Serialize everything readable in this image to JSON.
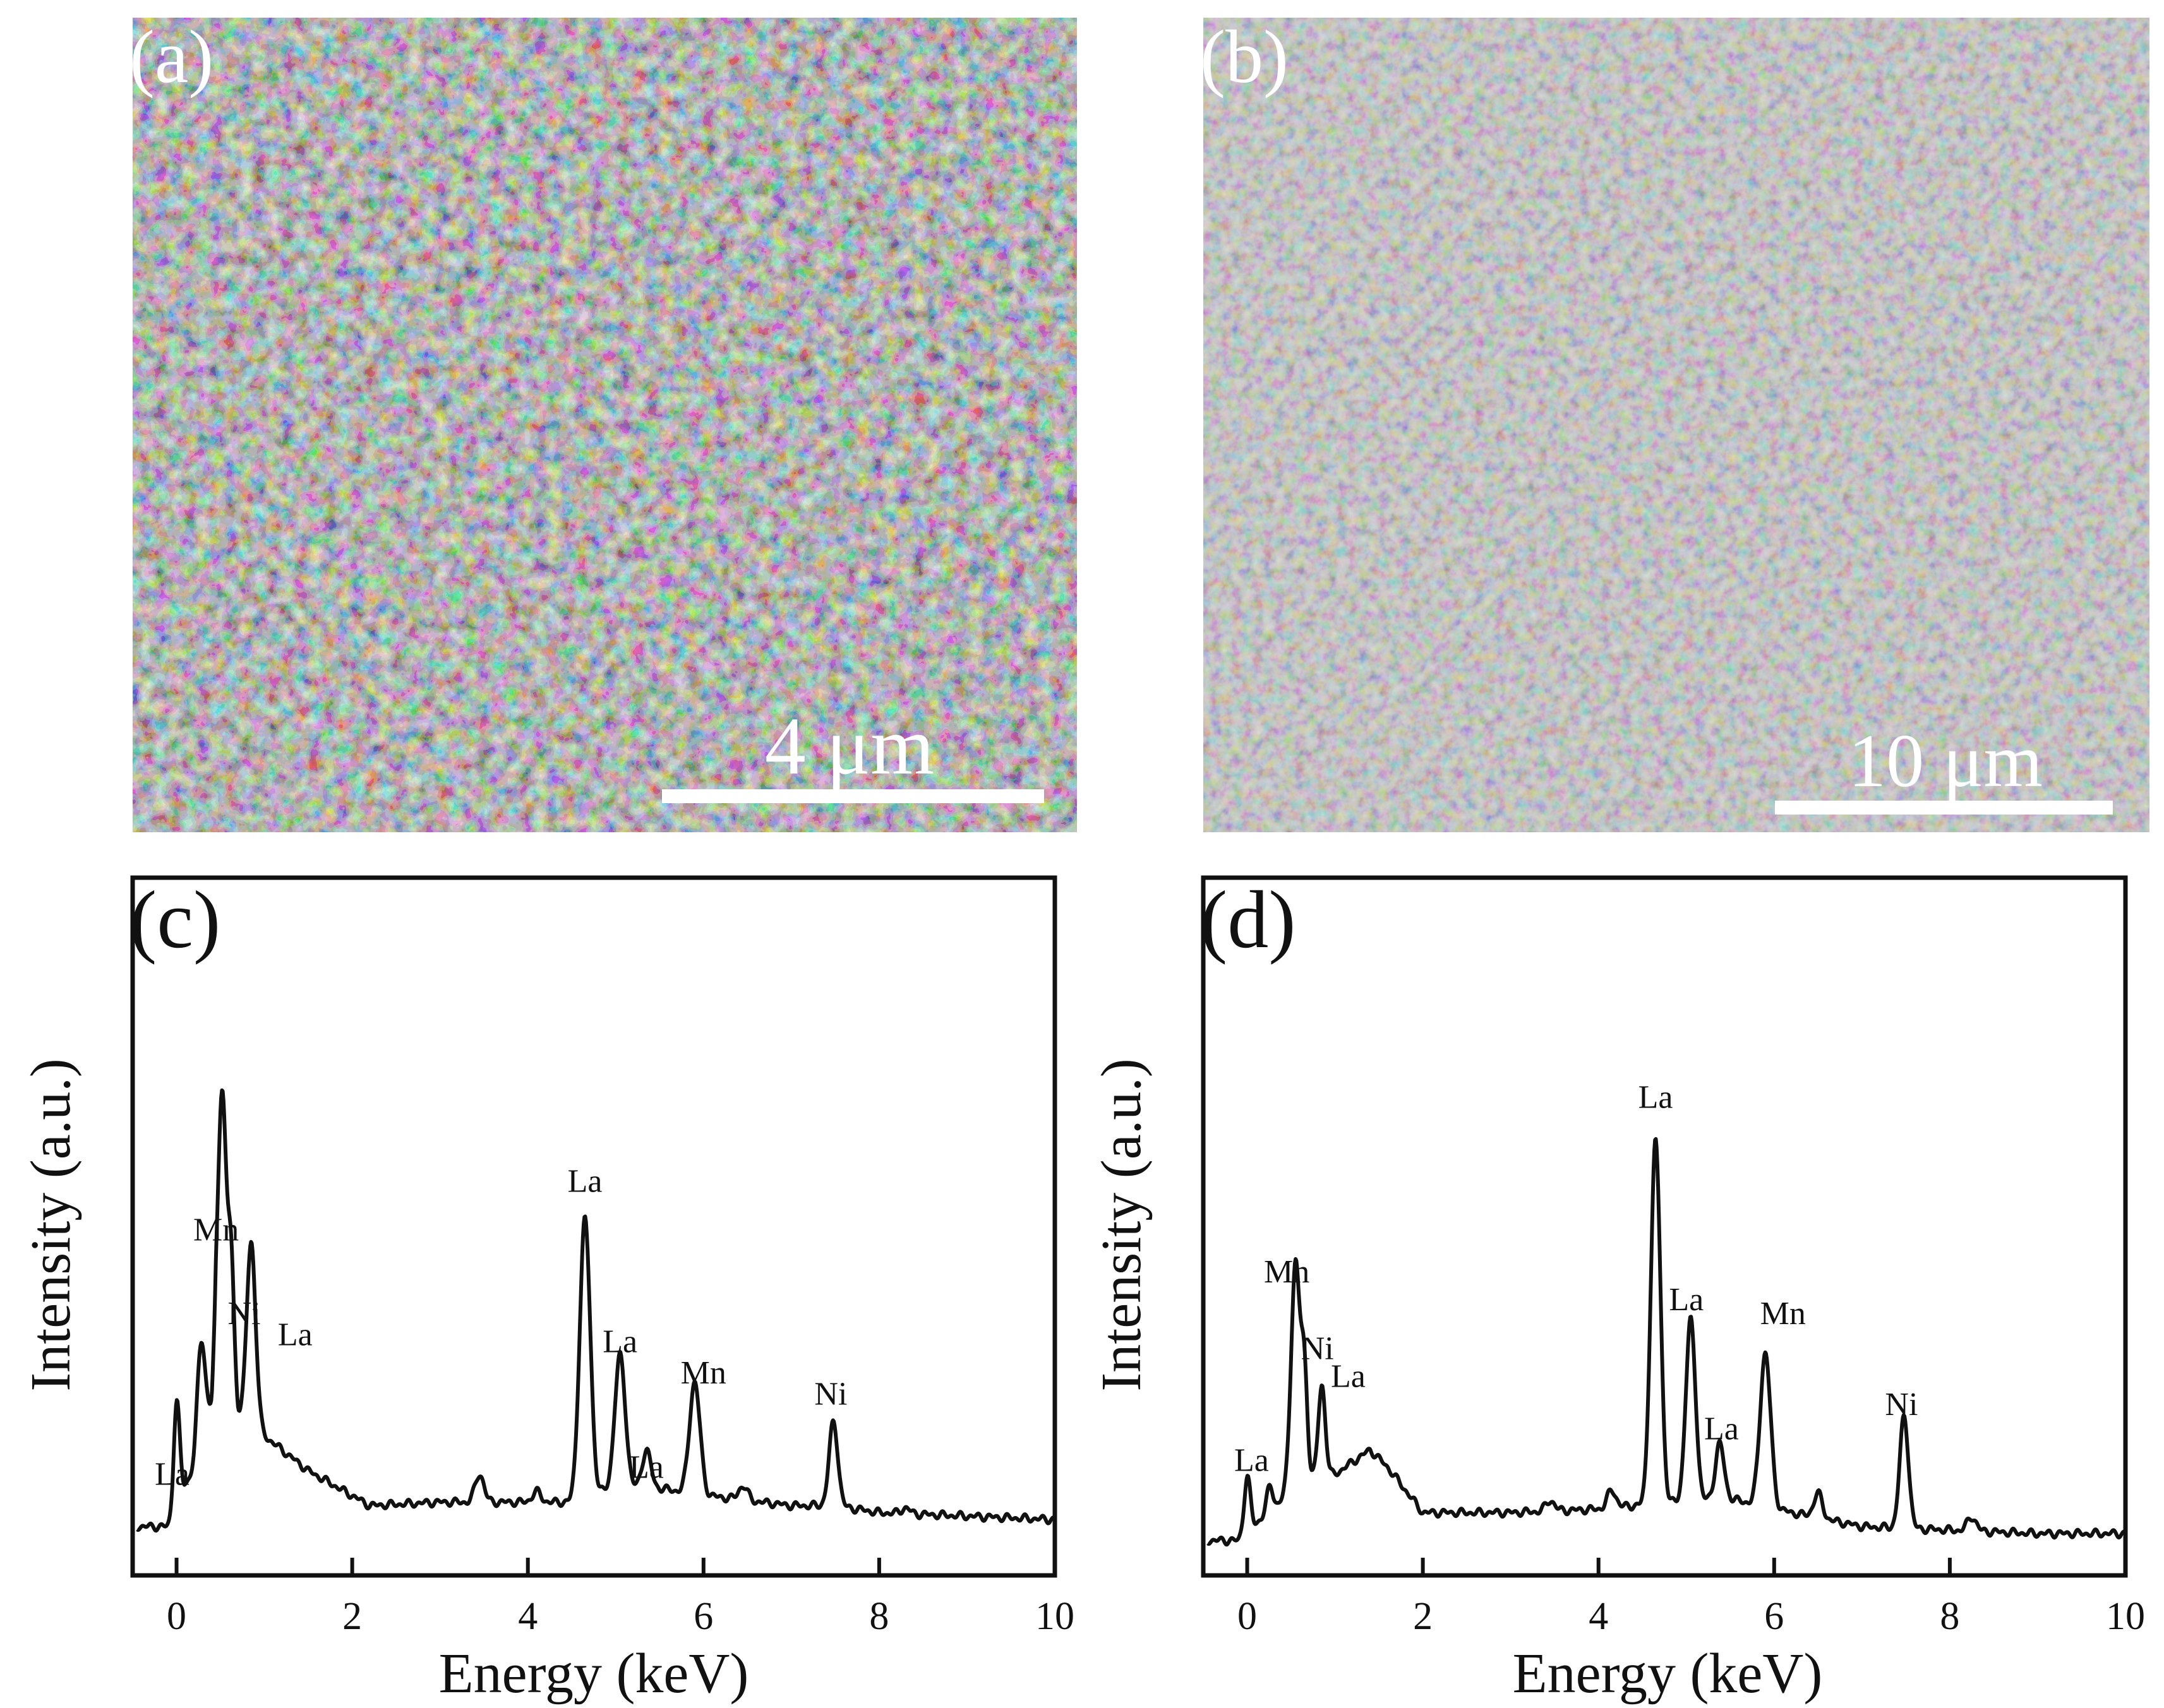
{
  "figure": {
    "panels": [
      {
        "label": "(a)",
        "type": "sem-micrograph",
        "scale_bar": "4 μm"
      },
      {
        "label": "(b)",
        "type": "sem-micrograph",
        "scale_bar": "10 μm"
      }
    ]
  },
  "colors": {
    "line": "#111111",
    "sem_dark": "#1c1c1c",
    "sem_mid": "#6e6e6e",
    "sem_light": "#cfcfcf",
    "scale_bar": "#ffffff"
  },
  "chart_data": [
    {
      "panel_label": "(c)",
      "type": "line",
      "xlabel": "Energy (keV)",
      "ylabel": "Intensity (a.u.)",
      "xlim": [
        -0.5,
        10
      ],
      "ylim": [
        0,
        10
      ],
      "xticks": [
        "0",
        "2",
        "4",
        "6",
        "8",
        "10"
      ],
      "baseline_points": [
        [
          -0.45,
          0.7
        ],
        [
          -0.05,
          0.7
        ],
        [
          0.1,
          1.3
        ],
        [
          0.2,
          1.5
        ],
        [
          0.4,
          2.4
        ],
        [
          0.45,
          3.5
        ],
        [
          0.7,
          2.3
        ],
        [
          0.95,
          2.1
        ],
        [
          1.0,
          2.0
        ],
        [
          1.5,
          1.5
        ],
        [
          2.2,
          1.0
        ],
        [
          3.0,
          1.05
        ],
        [
          4.5,
          1.05
        ],
        [
          5.0,
          1.25
        ],
        [
          5.5,
          1.25
        ],
        [
          6.0,
          1.15
        ],
        [
          7.0,
          1.0
        ],
        [
          7.5,
          1.0
        ],
        [
          8.0,
          0.9
        ],
        [
          9.0,
          0.85
        ],
        [
          10.0,
          0.8
        ]
      ],
      "peaks": [
        {
          "e": 0.0,
          "h": 1.6,
          "w": 0.035
        },
        {
          "e": 0.28,
          "h": 1.5,
          "w": 0.045
        },
        {
          "e": 0.52,
          "h": 3.8,
          "w": 0.045
        },
        {
          "e": 0.62,
          "h": 1.9,
          "w": 0.035
        },
        {
          "e": 0.85,
          "h": 2.6,
          "w": 0.05
        },
        {
          "e": 3.45,
          "h": 0.4,
          "w": 0.05
        },
        {
          "e": 4.1,
          "h": 0.15,
          "w": 0.05
        },
        {
          "e": 4.65,
          "h": 4.0,
          "w": 0.06
        },
        {
          "e": 5.05,
          "h": 1.9,
          "w": 0.06
        },
        {
          "e": 5.35,
          "h": 0.55,
          "w": 0.05
        },
        {
          "e": 5.9,
          "h": 1.6,
          "w": 0.06
        },
        {
          "e": 6.45,
          "h": 0.2,
          "w": 0.05
        },
        {
          "e": 7.48,
          "h": 1.2,
          "w": 0.05
        },
        {
          "e": 8.3,
          "h": 0.08,
          "w": 0.05
        }
      ],
      "peak_labels": [
        {
          "text": "La",
          "x": -0.05,
          "y": 1.3
        },
        {
          "text": "Mn",
          "x": 0.45,
          "y": 4.8
        },
        {
          "text": "Ni",
          "x": 0.77,
          "y": 3.6
        },
        {
          "text": "La",
          "x": 1.35,
          "y": 3.3
        },
        {
          "text": "La",
          "x": 4.65,
          "y": 5.5
        },
        {
          "text": "La",
          "x": 5.05,
          "y": 3.2
        },
        {
          "text": "La",
          "x": 5.35,
          "y": 1.4
        },
        {
          "text": "Mn",
          "x": 6.0,
          "y": 2.75
        },
        {
          "text": "Ni",
          "x": 7.45,
          "y": 2.45
        }
      ]
    },
    {
      "panel_label": "(d)",
      "type": "line",
      "xlabel": "Energy (keV)",
      "ylabel": "Intensity (a.u.)",
      "xlim": [
        -0.5,
        10
      ],
      "ylim": [
        0,
        10
      ],
      "xticks": [
        "0",
        "2",
        "4",
        "6",
        "8",
        "10"
      ],
      "baseline_points": [
        [
          -0.45,
          0.5
        ],
        [
          -0.1,
          0.5
        ],
        [
          0.15,
          0.8
        ],
        [
          0.3,
          0.9
        ],
        [
          0.45,
          1.2
        ],
        [
          0.7,
          1.4
        ],
        [
          1.0,
          1.45
        ],
        [
          1.4,
          1.8
        ],
        [
          1.6,
          1.55
        ],
        [
          2.0,
          0.9
        ],
        [
          3.0,
          0.9
        ],
        [
          4.0,
          0.95
        ],
        [
          4.4,
          1.0
        ],
        [
          5.5,
          1.1
        ],
        [
          6.2,
          0.9
        ],
        [
          7.0,
          0.7
        ],
        [
          8.0,
          0.65
        ],
        [
          9.0,
          0.6
        ],
        [
          10.0,
          0.6
        ]
      ],
      "peaks": [
        {
          "e": 0.0,
          "h": 0.8,
          "w": 0.035
        },
        {
          "e": 0.26,
          "h": 0.4,
          "w": 0.04
        },
        {
          "e": 0.55,
          "h": 3.2,
          "w": 0.05
        },
        {
          "e": 0.65,
          "h": 1.5,
          "w": 0.035
        },
        {
          "e": 0.85,
          "h": 1.3,
          "w": 0.04
        },
        {
          "e": 3.45,
          "h": 0.15,
          "w": 0.05
        },
        {
          "e": 4.15,
          "h": 0.25,
          "w": 0.05
        },
        {
          "e": 4.65,
          "h": 5.2,
          "w": 0.055
        },
        {
          "e": 5.05,
          "h": 2.6,
          "w": 0.055
        },
        {
          "e": 5.38,
          "h": 0.8,
          "w": 0.05
        },
        {
          "e": 5.9,
          "h": 2.2,
          "w": 0.06
        },
        {
          "e": 6.5,
          "h": 0.35,
          "w": 0.05
        },
        {
          "e": 7.48,
          "h": 1.6,
          "w": 0.05
        },
        {
          "e": 8.25,
          "h": 0.2,
          "w": 0.05
        }
      ],
      "peak_labels": [
        {
          "text": "La",
          "x": 0.05,
          "y": 1.5
        },
        {
          "text": "Mn",
          "x": 0.45,
          "y": 4.2
        },
        {
          "text": "Ni",
          "x": 0.8,
          "y": 3.1
        },
        {
          "text": "La",
          "x": 1.15,
          "y": 2.7
        },
        {
          "text": "La",
          "x": 4.65,
          "y": 6.7
        },
        {
          "text": "La",
          "x": 5.0,
          "y": 3.8
        },
        {
          "text": "La",
          "x": 5.4,
          "y": 1.95
        },
        {
          "text": "Mn",
          "x": 6.1,
          "y": 3.6
        },
        {
          "text": "Ni",
          "x": 7.45,
          "y": 2.3
        }
      ]
    }
  ]
}
